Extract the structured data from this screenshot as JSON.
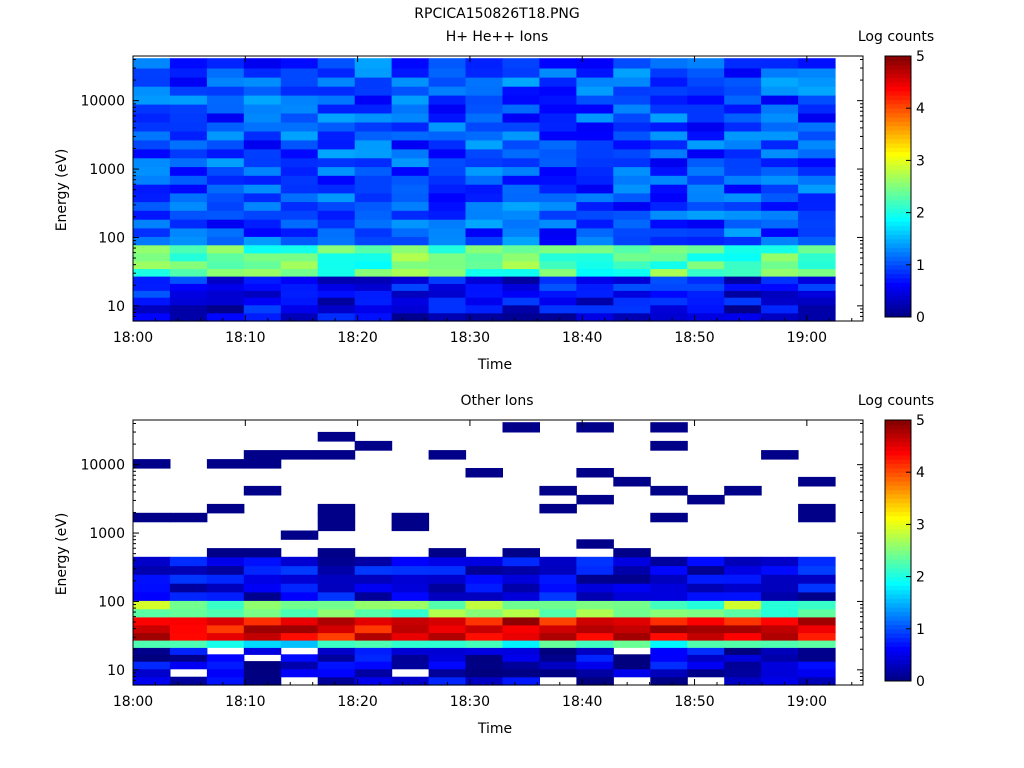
{
  "figure_title": "RPCICA150826T18.PNG",
  "colors": {
    "colormap": [
      "#00007f",
      "#0000ff",
      "#007fff",
      "#00ffff",
      "#7fff7f",
      "#ffff00",
      "#ff7f00",
      "#ff0000",
      "#7f0000"
    ]
  },
  "chart_data": [
    {
      "type": "heatmap",
      "title": "H+ He++ Ions",
      "xlabel": "Time",
      "ylabel": "Energy (eV)",
      "yscale": "log",
      "ylim": [
        6,
        45000
      ],
      "xlim": [
        "18:00",
        "19:05"
      ],
      "x_ticks": [
        "18:00",
        "18:10",
        "18:20",
        "18:30",
        "18:40",
        "18:50",
        "19:00"
      ],
      "y_ticks": [
        "10",
        "100",
        "1000",
        "10000"
      ],
      "colorbar": {
        "label": "Log counts",
        "range": [
          0,
          5
        ],
        "ticks": [
          "0",
          "1",
          "2",
          "3",
          "4",
          "5"
        ]
      },
      "time_columns": 19,
      "energy_bins_ev": [
        7,
        9,
        12,
        15,
        19,
        24,
        31,
        40,
        52,
        68,
        90,
        120,
        160,
        215,
        290,
        390,
        520,
        700,
        940,
        1260,
        1700,
        2300,
        3100,
        4200,
        5700,
        7700,
        10400,
        14000,
        19000,
        26000,
        35000
      ],
      "log_counts_by_energy_band": [
        {
          "band": "5-10 eV",
          "value": 0.5
        },
        {
          "band": "10-30 eV",
          "value": 0.6
        },
        {
          "band": "30-70 eV",
          "value": 2.3
        },
        {
          "band": "70-40000 eV",
          "value": 1.0
        }
      ]
    },
    {
      "type": "heatmap",
      "title": "Other Ions",
      "xlabel": "Time",
      "ylabel": "Energy (eV)",
      "yscale": "log",
      "ylim": [
        6,
        45000
      ],
      "xlim": [
        "18:00",
        "19:05"
      ],
      "x_ticks": [
        "18:00",
        "18:10",
        "18:20",
        "18:30",
        "18:40",
        "18:50",
        "19:00"
      ],
      "y_ticks": [
        "10",
        "100",
        "1000",
        "10000"
      ],
      "colorbar": {
        "label": "Log counts",
        "range": [
          0,
          5
        ],
        "ticks": [
          "0",
          "1",
          "2",
          "3",
          "4",
          "5"
        ]
      },
      "time_columns": 19,
      "energy_bins_ev": [
        7,
        9,
        12,
        15,
        19,
        24,
        31,
        40,
        52,
        68,
        90,
        120,
        160,
        215,
        290,
        390,
        520,
        700,
        940,
        1260,
        1700,
        2300,
        3100,
        4200,
        5700,
        7700,
        10400,
        14000,
        19000,
        26000,
        35000
      ],
      "log_counts_by_energy_band": [
        {
          "band": "5-20 eV",
          "value": 0.4
        },
        {
          "band": "20-30 eV",
          "value": 2.0
        },
        {
          "band": "30-60 eV",
          "value": 4.5
        },
        {
          "band": "60-120 eV",
          "value": 2.5
        },
        {
          "band": "120-400 eV",
          "value": 0.5
        },
        {
          "band": "400-40000 eV",
          "value": 0.1,
          "note": "sparse"
        }
      ]
    }
  ]
}
